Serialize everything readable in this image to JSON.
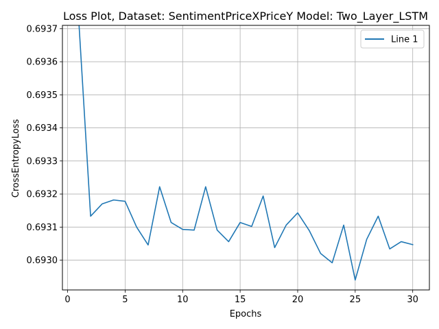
{
  "chart_data": {
    "type": "line",
    "title": "Loss Plot, Dataset: SentimentPriceXPriceY Model: Two_Layer_LSTM",
    "xlabel": "Epochs",
    "ylabel": "CrossEntropyLoss",
    "xlim": [
      -0.45,
      31.45
    ],
    "ylim": [
      0.69291,
      0.69371
    ],
    "xticks": [
      0,
      5,
      10,
      15,
      20,
      25,
      30
    ],
    "xtick_labels": [
      "0",
      "5",
      "10",
      "15",
      "20",
      "25",
      "30"
    ],
    "yticks": [
      0.693,
      0.6931,
      0.6932,
      0.6933,
      0.6934,
      0.6935,
      0.6936,
      0.6937
    ],
    "ytick_labels": [
      "0.6930",
      "0.6931",
      "0.6932",
      "0.6933",
      "0.6934",
      "0.6935",
      "0.6936",
      "0.6937"
    ],
    "grid": true,
    "legend_position": "top-right",
    "series": [
      {
        "name": "Line 1",
        "color": "#1f77b4",
        "x": [
          1,
          2,
          3,
          4,
          5,
          6,
          7,
          8,
          9,
          10,
          11,
          12,
          13,
          14,
          15,
          16,
          17,
          18,
          19,
          20,
          21,
          22,
          23,
          24,
          25,
          26,
          27,
          28,
          29,
          30
        ],
        "y": [
          0.693708,
          0.693133,
          0.69317,
          0.693182,
          0.693178,
          0.6931,
          0.693046,
          0.693222,
          0.693114,
          0.693093,
          0.693091,
          0.693222,
          0.693091,
          0.693056,
          0.693114,
          0.693102,
          0.693194,
          0.693038,
          0.693106,
          0.693143,
          0.69309,
          0.69302,
          0.692992,
          0.693106,
          0.69294,
          0.693063,
          0.693133,
          0.693034,
          0.693056,
          0.693047
        ]
      }
    ]
  }
}
